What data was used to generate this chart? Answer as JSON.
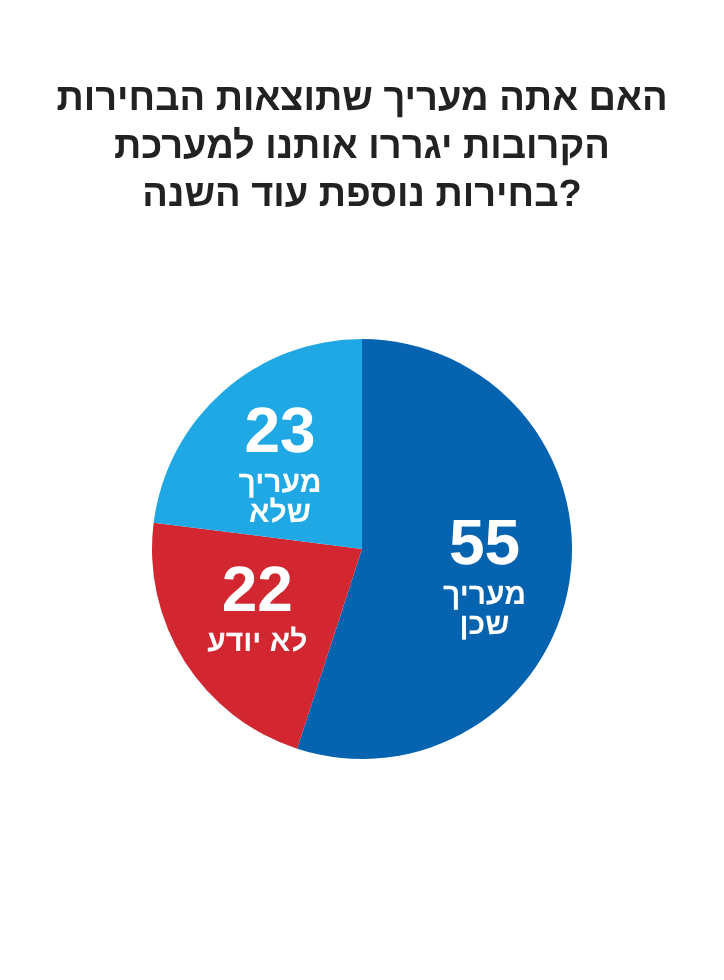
{
  "chart_data": {
    "type": "pie",
    "title": "האם אתה מעריך שתוצאות הבחירות הקרובות יגררו אותנו למערכת בחירות נוספת עוד השנה?",
    "categories": [
      "מעריך שכן",
      "לא יודע",
      "מעריך שלא"
    ],
    "values": [
      55,
      22,
      23
    ],
    "colors": [
      "#0563b0",
      "#d22630",
      "#1fa8e4"
    ],
    "data_labels": true,
    "legend": false
  }
}
